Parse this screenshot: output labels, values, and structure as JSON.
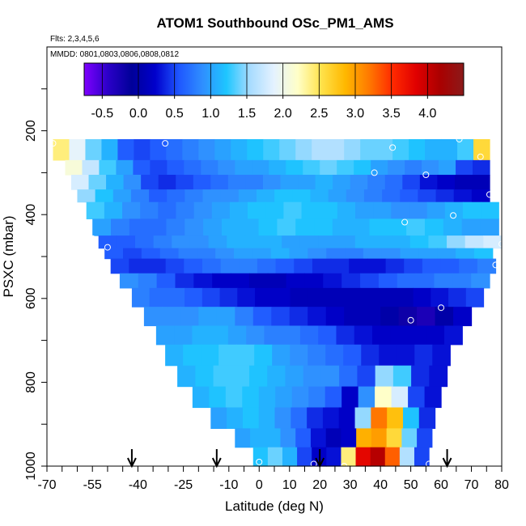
{
  "chart_data": {
    "type": "heatmap",
    "title": "ATOM1 Southbound OSc_PM1_AMS",
    "flights_note": "Flts: 2,3,4,5,6",
    "dates_note": "MMDD: 0801,0803,0806,0808,0812",
    "xlabel": "Latitude (deg N)",
    "ylabel": "PSXC (mbar)",
    "xlim": [
      -70,
      80
    ],
    "ylim": [
      1000,
      0
    ],
    "x_tick_labels": [
      "-70",
      "-55",
      "-40",
      "-25",
      "-10",
      "0",
      "10",
      "20",
      "30",
      "40",
      "50",
      "60",
      "70",
      "80"
    ],
    "x_tick_values": [
      -70,
      -55,
      -40,
      -25,
      -10,
      0,
      10,
      20,
      30,
      40,
      50,
      60,
      70,
      80
    ],
    "y_tick_labels": [
      "200",
      "400",
      "600",
      "800",
      "1000"
    ],
    "y_tick_values": [
      200,
      400,
      600,
      800,
      1000
    ],
    "colorbar": {
      "min": -0.75,
      "max": 4.5,
      "tick_labels": [
        "-0.5",
        "0.0",
        "0.5",
        "1.0",
        "1.5",
        "2.0",
        "2.5",
        "3.0",
        "3.5",
        "4.0"
      ],
      "tick_values": [
        -0.5,
        0.0,
        0.5,
        1.0,
        1.5,
        2.0,
        2.5,
        3.0,
        3.5,
        4.0
      ],
      "colors": [
        "#7f00ff",
        "#2b00c8",
        "#000099",
        "#0000cc",
        "#1f57ff",
        "#2f8fff",
        "#1ec6ff",
        "#a8dcff",
        "#e4f2ff",
        "#ffffc8",
        "#ffe24a",
        "#ffb800",
        "#ff7a00",
        "#ff2a00",
        "#e00000",
        "#aa0000",
        "#8b1a1a"
      ]
    },
    "curtain_bands": [
      {
        "p_top": 220,
        "p_bottom": 270,
        "lat_start": -68,
        "lat_end": 76,
        "values": [
          2.4,
          1.9,
          1.4,
          1.1,
          0.6,
          0.5,
          0.6,
          0.7,
          0.8,
          0.9,
          1.0,
          1.1,
          1.2,
          1.3,
          1.4,
          1.5,
          1.6,
          1.6,
          1.5,
          1.4,
          1.4,
          1.3,
          1.2,
          1.1,
          1.1,
          1.3,
          2.6
        ]
      },
      {
        "p_top": 270,
        "p_bottom": 305,
        "lat_start": -64,
        "lat_end": 76,
        "values": [
          2.1,
          1.7,
          1.3,
          1.0,
          0.6,
          0.5,
          0.6,
          0.7,
          0.8,
          0.9,
          1.0,
          1.0,
          1.1,
          1.2,
          1.3,
          1.4,
          1.3,
          1.2,
          1.0,
          0.9,
          0.8,
          0.9,
          1.0,
          0.5,
          0.4
        ]
      },
      {
        "p_top": 305,
        "p_bottom": 340,
        "lat_start": -62,
        "lat_end": 76,
        "values": [
          1.8,
          1.4,
          1.1,
          0.9,
          0.5,
          0.4,
          0.5,
          0.6,
          0.7,
          0.8,
          0.8,
          0.9,
          1.0,
          1.0,
          1.1,
          1.0,
          0.9,
          0.8,
          0.7,
          0.5,
          0.3,
          0.2,
          0.1,
          0.1
        ]
      },
      {
        "p_top": 340,
        "p_bottom": 370,
        "lat_start": -60,
        "lat_end": 76,
        "values": [
          1.5,
          1.2,
          1.0,
          0.8,
          0.6,
          0.7,
          0.8,
          0.9,
          0.9,
          1.0,
          1.1,
          1.2,
          1.2,
          1.1,
          1.0,
          0.9,
          0.8,
          0.7,
          0.6,
          0.5,
          0.4,
          0.3,
          0.2
        ]
      },
      {
        "p_top": 370,
        "p_bottom": 410,
        "lat_start": -57,
        "lat_end": 79,
        "values": [
          1.3,
          1.1,
          0.9,
          0.8,
          0.7,
          0.8,
          0.9,
          1.0,
          1.1,
          1.2,
          1.2,
          1.3,
          1.2,
          1.2,
          1.1,
          1.0,
          1.0,
          0.9,
          0.9,
          1.0,
          1.1,
          1.2,
          1.2
        ]
      },
      {
        "p_top": 410,
        "p_bottom": 450,
        "lat_start": -55,
        "lat_end": 79,
        "values": [
          1.0,
          0.8,
          0.7,
          0.7,
          0.8,
          0.9,
          1.0,
          1.1,
          1.1,
          1.2,
          1.3,
          1.2,
          1.2,
          1.1,
          1.1,
          1.2,
          1.2,
          1.3,
          1.2,
          1.1,
          1.0,
          1.0
        ]
      },
      {
        "p_top": 450,
        "p_bottom": 480,
        "lat_start": -53,
        "lat_end": 80,
        "values": [
          0.6,
          0.6,
          0.7,
          0.8,
          0.9,
          0.9,
          1.0,
          1.1,
          1.1,
          1.1,
          1.0,
          1.0,
          1.0,
          1.0,
          1.1,
          1.1,
          1.1,
          1.2,
          1.3,
          1.5,
          1.7,
          1.8
        ]
      },
      {
        "p_top": 480,
        "p_bottom": 505,
        "lat_start": -51,
        "lat_end": 77,
        "values": [
          0.6,
          0.5,
          0.6,
          0.7,
          0.8,
          0.8,
          0.9,
          1.0,
          1.0,
          1.1,
          1.0,
          0.9,
          0.8,
          0.8,
          0.9,
          0.9,
          1.0,
          1.0,
          1.0,
          1.1,
          1.2
        ]
      },
      {
        "p_top": 505,
        "p_bottom": 540,
        "lat_start": -49,
        "lat_end": 78,
        "values": [
          0.5,
          0.4,
          0.4,
          0.5,
          0.6,
          0.7,
          0.8,
          0.8,
          0.7,
          0.6,
          0.5,
          0.4,
          0.4,
          0.3,
          0.3,
          0.4,
          0.5,
          0.6,
          0.6,
          0.7,
          0.8
        ]
      },
      {
        "p_top": 540,
        "p_bottom": 575,
        "lat_start": -46,
        "lat_end": 76,
        "values": [
          0.9,
          0.8,
          0.6,
          0.4,
          0.3,
          0.2,
          0.2,
          0.1,
          0.1,
          0.2,
          0.2,
          0.3,
          0.4,
          0.5,
          0.6,
          0.7,
          0.7,
          0.8,
          0.8,
          0.9
        ]
      },
      {
        "p_top": 575,
        "p_bottom": 620,
        "lat_start": -42,
        "lat_end": 74,
        "values": [
          0.8,
          0.7,
          0.7,
          0.6,
          0.5,
          0.4,
          0.3,
          0.2,
          0.2,
          0.1,
          0.1,
          0.1,
          0.1,
          0.1,
          0.1,
          0.1,
          0.2,
          0.3,
          0.4,
          0.5
        ]
      },
      {
        "p_top": 620,
        "p_bottom": 665,
        "lat_start": -38,
        "lat_end": 70,
        "values": [
          0.9,
          0.9,
          0.9,
          1.0,
          1.0,
          0.8,
          0.6,
          0.5,
          0.4,
          0.3,
          0.2,
          0.1,
          0.1,
          0.0,
          -0.2,
          -0.3,
          0.0,
          0.2
        ]
      },
      {
        "p_top": 665,
        "p_bottom": 710,
        "lat_start": -34,
        "lat_end": 67,
        "values": [
          1.0,
          1.0,
          1.1,
          1.1,
          1.0,
          0.9,
          0.8,
          0.8,
          0.7,
          0.6,
          0.4,
          0.3,
          0.2,
          0.2,
          0.2,
          0.2,
          0.3
        ]
      },
      {
        "p_top": 710,
        "p_bottom": 760,
        "lat_start": -31,
        "lat_end": 63,
        "values": [
          1.1,
          1.2,
          1.2,
          1.3,
          1.3,
          1.2,
          1.0,
          0.9,
          0.8,
          0.7,
          0.6,
          0.4,
          0.3,
          0.3,
          0.4,
          0.3
        ]
      },
      {
        "p_top": 760,
        "p_bottom": 810,
        "lat_start": -27,
        "lat_end": 62,
        "values": [
          1.1,
          1.2,
          1.3,
          1.3,
          1.2,
          1.1,
          1.0,
          0.9,
          0.9,
          0.7,
          0.5,
          1.5,
          1.3,
          0.4,
          0.3
        ]
      },
      {
        "p_top": 810,
        "p_bottom": 860,
        "lat_start": -22,
        "lat_end": 60,
        "values": [
          1.1,
          1.2,
          1.3,
          1.2,
          1.1,
          1.0,
          0.9,
          0.8,
          0.6,
          0.2,
          0.9,
          2.2,
          1.8,
          0.5,
          0.3
        ]
      },
      {
        "p_top": 860,
        "p_bottom": 910,
        "lat_start": -16,
        "lat_end": 58,
        "values": [
          1.0,
          1.1,
          1.2,
          1.1,
          0.9,
          0.7,
          0.4,
          0.3,
          0.2,
          1.5,
          3.2,
          2.8,
          1.2,
          0.4
        ]
      },
      {
        "p_top": 910,
        "p_bottom": 955,
        "lat_start": -8,
        "lat_end": 57,
        "values": [
          1.0,
          1.1,
          1.1,
          0.9,
          0.6,
          0.3,
          0.1,
          0.2,
          2.9,
          3.0,
          2.6,
          1.4,
          0.5
        ]
      },
      {
        "p_top": 955,
        "p_bottom": 1000,
        "lat_start": -2,
        "lat_end": 56,
        "values": [
          1.2,
          1.4,
          1.1,
          0.5,
          0.2,
          0.3,
          2.4,
          3.8,
          4.1,
          3.3,
          1.6,
          0.5
        ]
      }
    ],
    "sample_circles": [
      {
        "lat": -68,
        "p": 230
      },
      {
        "lat": -31,
        "p": 230
      },
      {
        "lat": 44,
        "p": 240
      },
      {
        "lat": 66,
        "p": 220
      },
      {
        "lat": 73,
        "p": 262
      },
      {
        "lat": 38,
        "p": 300
      },
      {
        "lat": 55,
        "p": 305
      },
      {
        "lat": 76,
        "p": 352
      },
      {
        "lat": 64,
        "p": 402
      },
      {
        "lat": 48,
        "p": 418
      },
      {
        "lat": -55,
        "p": 457
      },
      {
        "lat": -50,
        "p": 478
      },
      {
        "lat": 80,
        "p": 470
      },
      {
        "lat": 78,
        "p": 520
      },
      {
        "lat": 60,
        "p": 622
      },
      {
        "lat": 50,
        "p": 652
      },
      {
        "lat": 0,
        "p": 990
      },
      {
        "lat": 18,
        "p": 995
      },
      {
        "lat": 28,
        "p": 1000
      },
      {
        "lat": 56,
        "p": 995
      }
    ],
    "arrow_latitudes": [
      -42,
      -14,
      20,
      62
    ]
  }
}
